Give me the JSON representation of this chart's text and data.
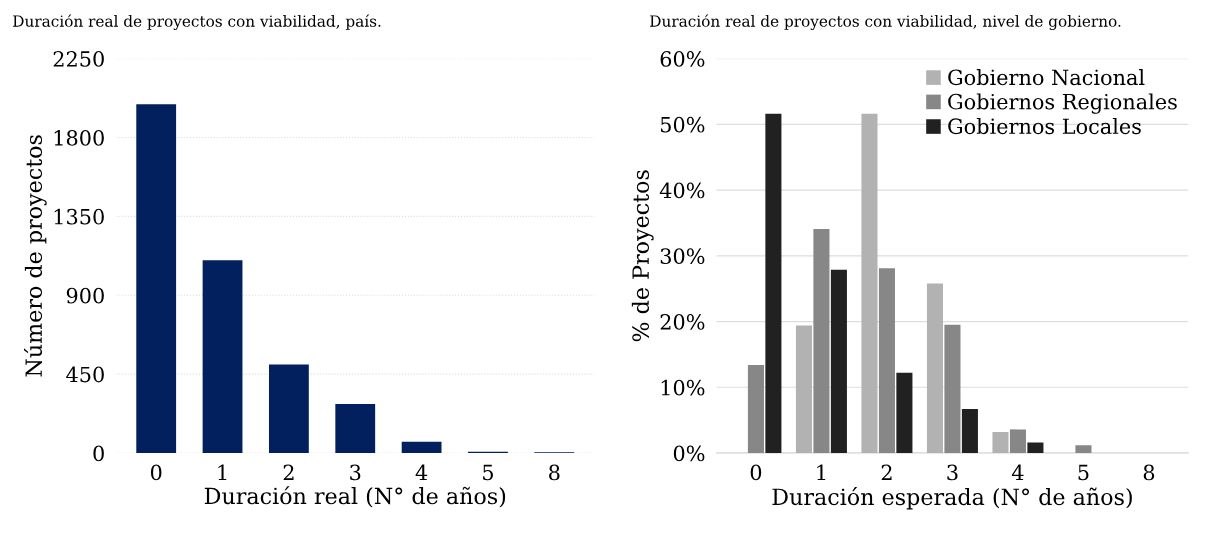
{
  "chart_data": [
    {
      "type": "bar",
      "title": "Duración real de proyectos con viabilidad, país.",
      "xlabel": "Duración real (N° de años)",
      "ylabel": "Número de proyectos",
      "categories": [
        "0",
        "1",
        "2",
        "3",
        "4",
        "5",
        "8"
      ],
      "values": [
        1990,
        1100,
        505,
        280,
        64,
        7,
        4
      ],
      "color": "#021f5e",
      "ylim": [
        0,
        2250
      ],
      "yticks": [
        0,
        450,
        900,
        1350,
        1800,
        2250
      ],
      "grid": "y",
      "legend": false
    },
    {
      "type": "bar",
      "title": "Duración real de proyectos con viabilidad, nivel de gobierno.",
      "xlabel": "Duración esperada (N° de años)",
      "ylabel": "% de Proyectos",
      "categories": [
        "0",
        "1",
        "2",
        "3",
        "4",
        "5",
        "8"
      ],
      "series": [
        {
          "name": "Gobierno Nacional",
          "color": "#b2b2b2",
          "values": [
            0,
            19.4,
            51.6,
            25.8,
            3.2,
            0,
            0
          ]
        },
        {
          "name": "Gobiernos Regionales",
          "color": "#878787",
          "values": [
            13.4,
            34.1,
            28.1,
            19.5,
            3.6,
            1.2,
            0
          ]
        },
        {
          "name": "Gobiernos Locales",
          "color": "#212121",
          "values": [
            51.6,
            27.9,
            12.2,
            6.7,
            1.6,
            0,
            0
          ]
        }
      ],
      "ylim": [
        0,
        60
      ],
      "yticks": [
        {
          "value": 0,
          "label": "0%"
        },
        {
          "value": 10,
          "label": "10%"
        },
        {
          "value": 20,
          "label": "20%"
        },
        {
          "value": 30,
          "label": "30%"
        },
        {
          "value": 40,
          "label": "40%"
        },
        {
          "value": 50,
          "label": "50%"
        },
        {
          "value": 60,
          "label": "60%"
        }
      ],
      "grid": "y",
      "legend": "top right"
    }
  ]
}
